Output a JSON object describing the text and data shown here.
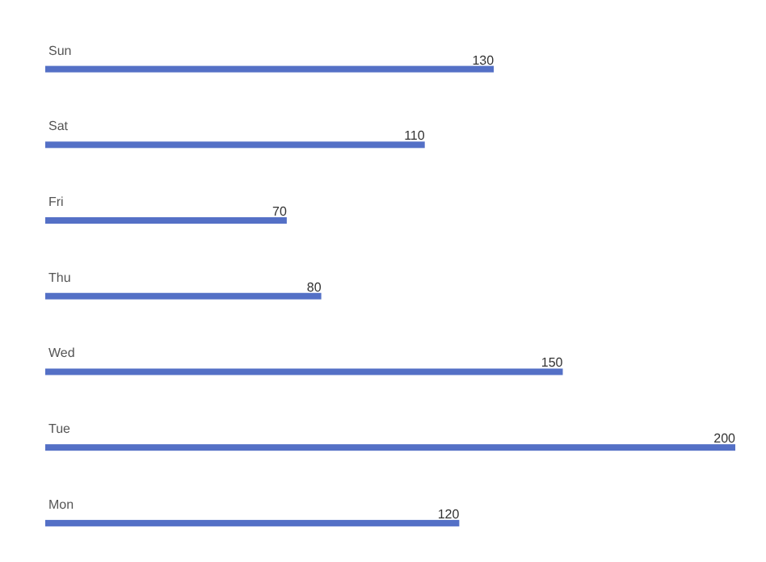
{
  "chart_data": {
    "type": "bar",
    "orientation": "horizontal",
    "categories": [
      "Sun",
      "Sat",
      "Fri",
      "Thu",
      "Wed",
      "Tue",
      "Mon"
    ],
    "values": [
      130,
      110,
      70,
      80,
      150,
      200,
      120
    ],
    "color": "#5470c6",
    "data_labels": true
  }
}
